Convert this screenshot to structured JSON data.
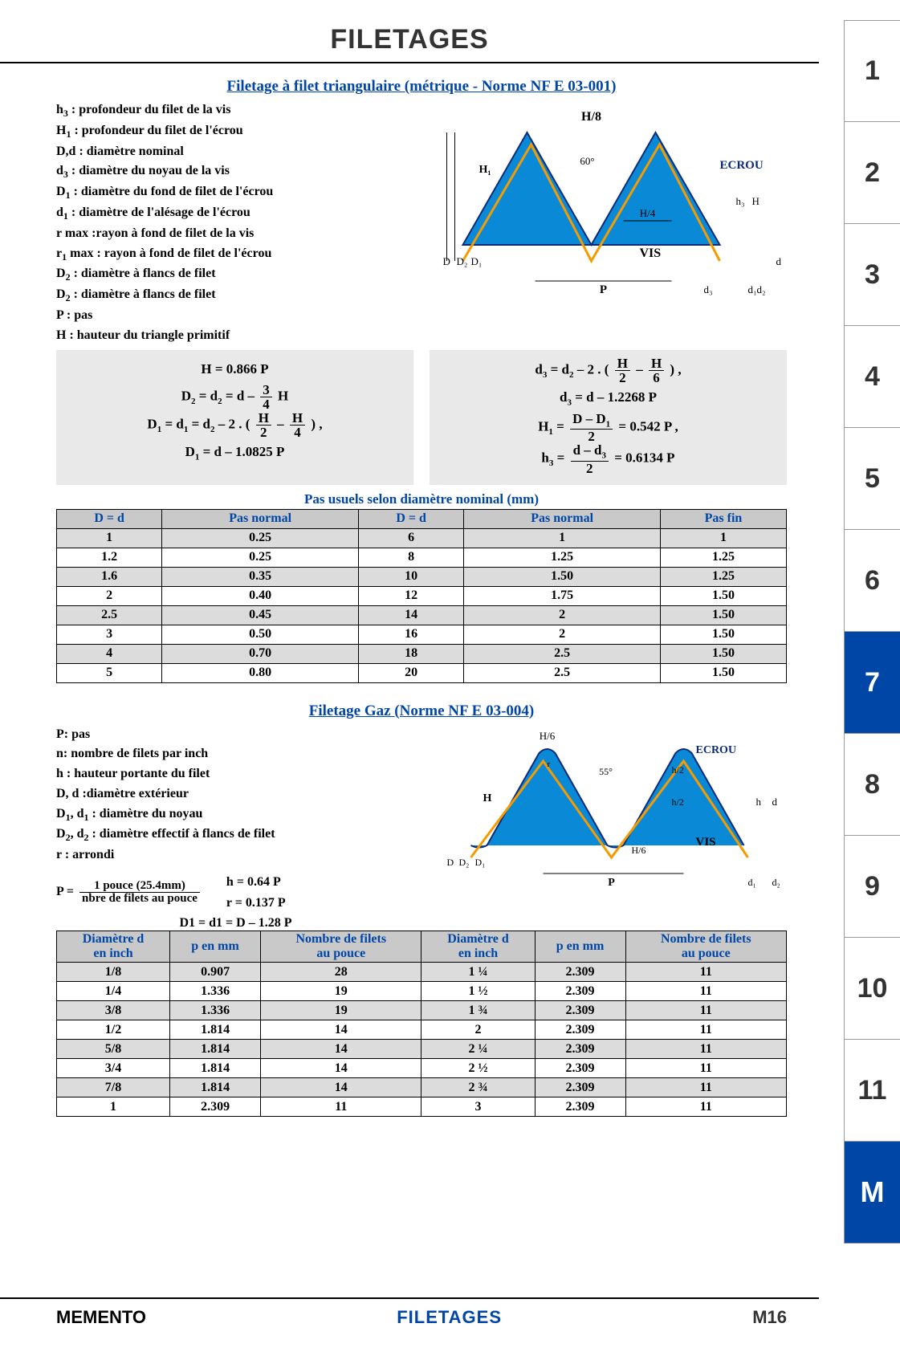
{
  "title": "FILETAGES",
  "side_tabs": [
    "1",
    "2",
    "3",
    "4",
    "5",
    "6",
    "7",
    "8",
    "9",
    "10",
    "11",
    "M"
  ],
  "active_tab_index": 6,
  "m_tab_index": 11,
  "section1": {
    "title": "Filetage à filet triangulaire (métrique - Norme NF E 03-001)",
    "definitions": [
      "h₃ : profondeur du filet de la vis",
      "H₁ : profondeur du filet de l'écrou",
      "D,d : diamètre nominal",
      "d₃ : diamètre du noyau de la vis",
      "D₁ : diamètre du fond de filet de l'écrou",
      "d₁ : diamètre de l'alésage de l'écrou",
      "r max :rayon à fond de filet de la vis",
      "r₁ max : rayon à fond de filet de l'écrou",
      "D₂ : diamètre à flancs de filet",
      "D₂ : diamètre à flancs de filet",
      "P : pas",
      "H : hauteur du triangle primitif"
    ],
    "diagram": {
      "labels": {
        "h8": "H/8",
        "h4": "H/4",
        "ecrou": "ECROU",
        "vis": "VIS",
        "angle": "60°"
      },
      "colors": {
        "fill": "#0a8ad6",
        "outline_vis": "#f59b00",
        "outline_ecrou": "#0a2a7a"
      }
    },
    "formulas_left": [
      "H = 0.866 P",
      "D₂ = d₂ = d – (3/4) H",
      "D₁ = d₁ = d₂ – 2 . ( H/2 – H/4 ) ,",
      "D₁ = d – 1.0825 P"
    ],
    "formulas_right": [
      "d₃ = d₂ – 2 . ( H/2 – H/6 ) ,",
      "d₃ = d – 1.2268 P",
      "H₁ = (D – D₁)/2 = 0.542 P ,",
      "h₃ = (d – d₃)/2 = 0.6134 P"
    ],
    "table_caption": "Pas usuels selon diamètre nominal (mm)",
    "table": {
      "headers": [
        "D = d",
        "Pas normal",
        "D = d",
        "Pas normal",
        "Pas fin"
      ],
      "rows": [
        [
          "1",
          "0.25",
          "6",
          "1",
          "1"
        ],
        [
          "1.2",
          "0.25",
          "8",
          "1.25",
          "1.25"
        ],
        [
          "1.6",
          "0.35",
          "10",
          "1.50",
          "1.25"
        ],
        [
          "2",
          "0.40",
          "12",
          "1.75",
          "1.50"
        ],
        [
          "2.5",
          "0.45",
          "14",
          "2",
          "1.50"
        ],
        [
          "3",
          "0.50",
          "16",
          "2",
          "1.50"
        ],
        [
          "4",
          "0.70",
          "18",
          "2.5",
          "1.50"
        ],
        [
          "5",
          "0.80",
          "20",
          "2.5",
          "1.50"
        ]
      ]
    }
  },
  "section2": {
    "title": "Filetage Gaz (Norme NF E 03-004)",
    "definitions": [
      "P: pas",
      "n: nombre de filets par inch",
      "h : hauteur portante du filet",
      "D, d :diamètre extérieur",
      "D₁, d₁ : diamètre du noyau",
      "D₂, d₂ : diamètre effectif à flancs de filet",
      "r : arrondi"
    ],
    "diagram": {
      "labels": {
        "h6": "H/6",
        "h2": "h/2",
        "ecrou": "ECROU",
        "vis": "VIS",
        "angle": "55°"
      },
      "colors": {
        "fill": "#0a8ad6",
        "outline_vis": "#f59b00",
        "outline_ecrou": "#0a2a7a"
      }
    },
    "formula_p_label": "P =",
    "formula_p_num": "1 pouce (25.4mm)",
    "formula_p_den": "nbre de filets au pouce",
    "formulas_mid": [
      "h = 0.64 P",
      "r = 0.137 P",
      "D1 = d1 = D – 1.28 P"
    ],
    "table": {
      "headers": [
        "Diamètre d en inch",
        "p en mm",
        "Nombre de filets au pouce",
        "Diamètre d en inch",
        "p en mm",
        "Nombre de filets au pouce"
      ],
      "rows": [
        [
          "1/8",
          "0.907",
          "28",
          "1 ¼",
          "2.309",
          "11"
        ],
        [
          "1/4",
          "1.336",
          "19",
          "1 ½",
          "2.309",
          "11"
        ],
        [
          "3/8",
          "1.336",
          "19",
          "1 ¾",
          "2.309",
          "11"
        ],
        [
          "1/2",
          "1.814",
          "14",
          "2",
          "2.309",
          "11"
        ],
        [
          "5/8",
          "1.814",
          "14",
          "2 ¼",
          "2.309",
          "11"
        ],
        [
          "3/4",
          "1.814",
          "14",
          "2 ½",
          "2.309",
          "11"
        ],
        [
          "7/8",
          "1.814",
          "14",
          "2 ¾",
          "2.309",
          "11"
        ],
        [
          "1",
          "2.309",
          "11",
          "3",
          "2.309",
          "11"
        ]
      ]
    }
  },
  "footer": {
    "left": "MEMENTO",
    "mid": "FILETAGES",
    "right": "M16"
  }
}
